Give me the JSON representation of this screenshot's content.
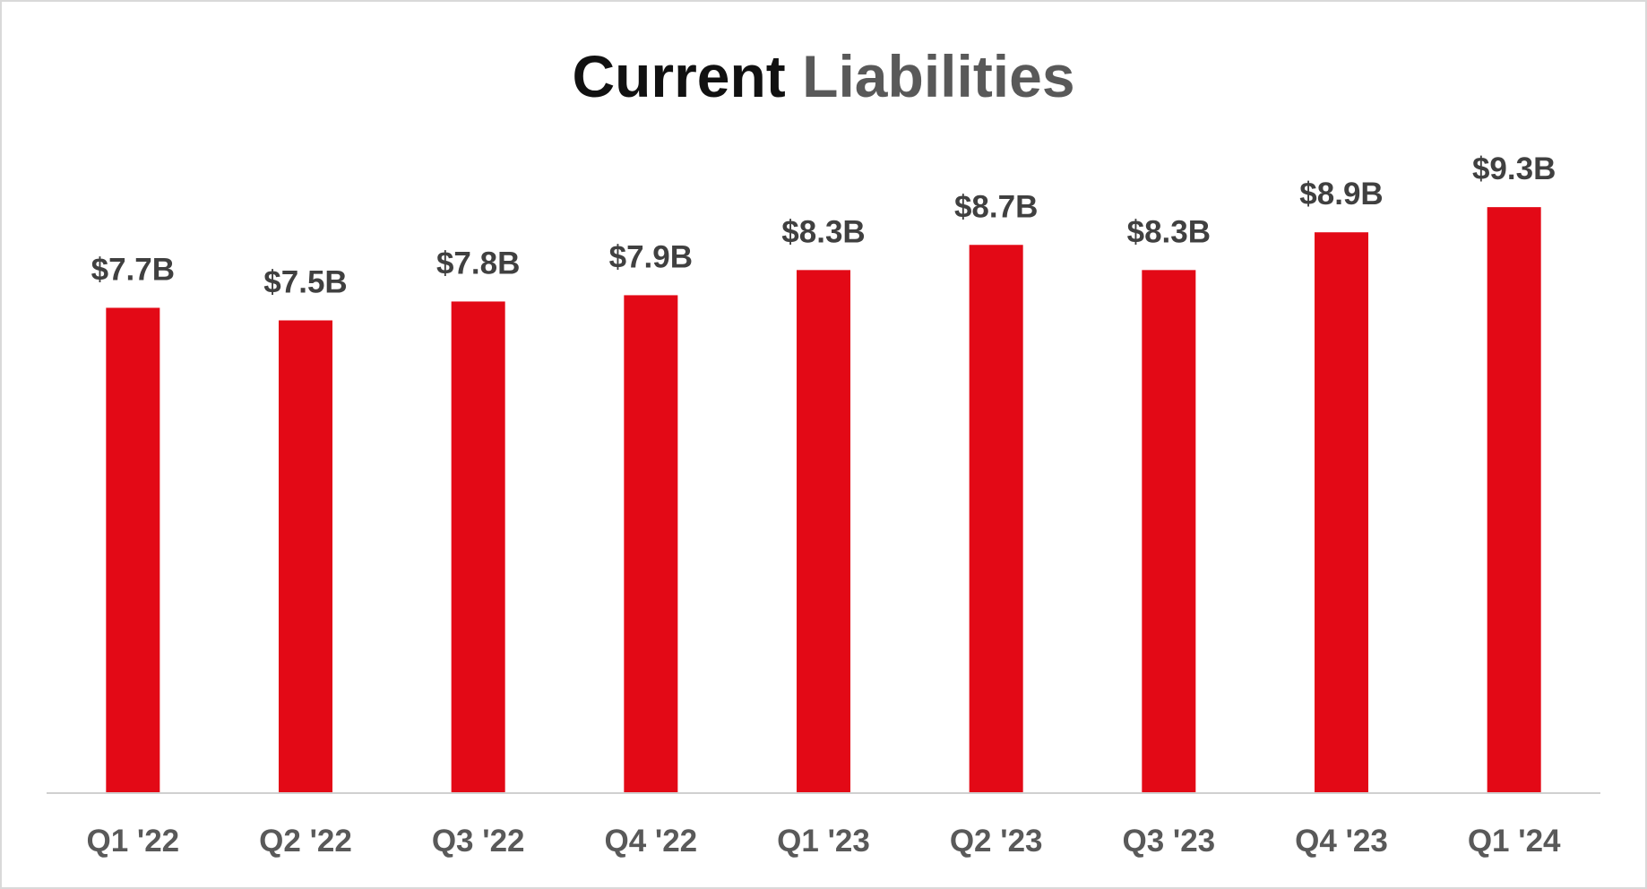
{
  "title": {
    "part1": "Current",
    "part2": "Liabilities"
  },
  "colors": {
    "bar": "#e30916",
    "title_dark": "#111111",
    "title_gray": "#595959",
    "label": "#404040",
    "axis": "#d0d0d0"
  },
  "chart_data": {
    "type": "bar",
    "title": "Current Liabilities",
    "categories": [
      "Q1 '22",
      "Q2 '22",
      "Q3 '22",
      "Q4 '22",
      "Q1 '23",
      "Q2 '23",
      "Q3 '23",
      "Q4 '23",
      "Q1 '24"
    ],
    "values": [
      7.7,
      7.5,
      7.8,
      7.9,
      8.3,
      8.7,
      8.3,
      8.9,
      9.3
    ],
    "data_labels": [
      "$7.7B",
      "$7.5B",
      "$7.8B",
      "$7.9B",
      "$8.3B",
      "$8.7B",
      "$8.3B",
      "$8.9B",
      "$9.3B"
    ],
    "xlabel": "",
    "ylabel": "",
    "unit": "billions USD",
    "ylim": [
      0,
      10.4
    ],
    "grid": false,
    "legend": "none"
  }
}
